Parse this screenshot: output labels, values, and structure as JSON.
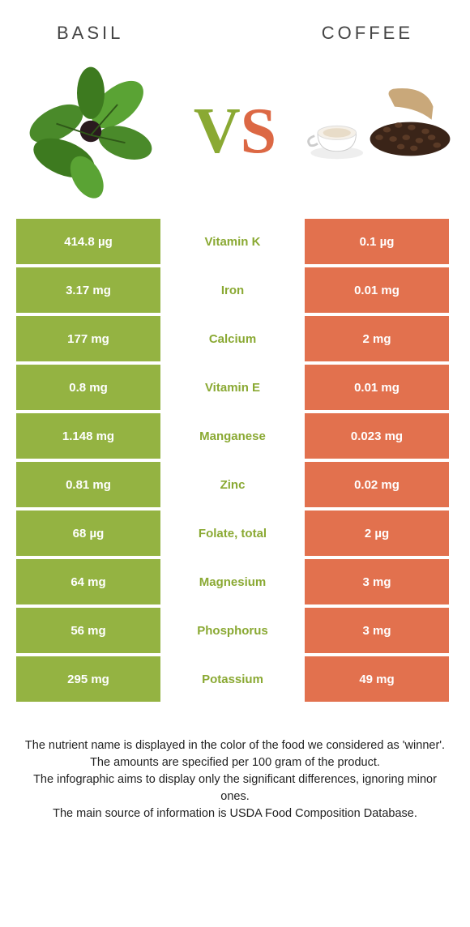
{
  "header": {
    "left": "Basil",
    "right": "Coffee"
  },
  "colors": {
    "basil_cell": "#94b342",
    "coffee_cell": "#e2714e",
    "nutrient_basil_win": "#8aa933",
    "nutrient_coffee_win": "#dc6844",
    "cell_text": "#ffffff"
  },
  "vs": {
    "v": "V",
    "s": "S"
  },
  "rows": [
    {
      "left": "414.8 µg",
      "mid": "Vitamin K",
      "right": "0.1 µg",
      "winner": "basil"
    },
    {
      "left": "3.17 mg",
      "mid": "Iron",
      "right": "0.01 mg",
      "winner": "basil"
    },
    {
      "left": "177 mg",
      "mid": "Calcium",
      "right": "2 mg",
      "winner": "basil"
    },
    {
      "left": "0.8 mg",
      "mid": "Vitamin E",
      "right": "0.01 mg",
      "winner": "basil"
    },
    {
      "left": "1.148 mg",
      "mid": "Manganese",
      "right": "0.023 mg",
      "winner": "basil"
    },
    {
      "left": "0.81 mg",
      "mid": "Zinc",
      "right": "0.02 mg",
      "winner": "basil"
    },
    {
      "left": "68 µg",
      "mid": "Folate, total",
      "right": "2 µg",
      "winner": "basil"
    },
    {
      "left": "64 mg",
      "mid": "Magnesium",
      "right": "3 mg",
      "winner": "basil"
    },
    {
      "left": "56 mg",
      "mid": "Phosphorus",
      "right": "3 mg",
      "winner": "basil"
    },
    {
      "left": "295 mg",
      "mid": "Potassium",
      "right": "49 mg",
      "winner": "basil"
    }
  ],
  "footer": {
    "line1": "The nutrient name is displayed in the color of the food we considered as 'winner'.",
    "line2": "The amounts are specified per 100 gram of the product.",
    "line3": "The infographic aims to display only the significant differences, ignoring minor ones.",
    "line4": "The main source of information is USDA Food Composition Database."
  }
}
